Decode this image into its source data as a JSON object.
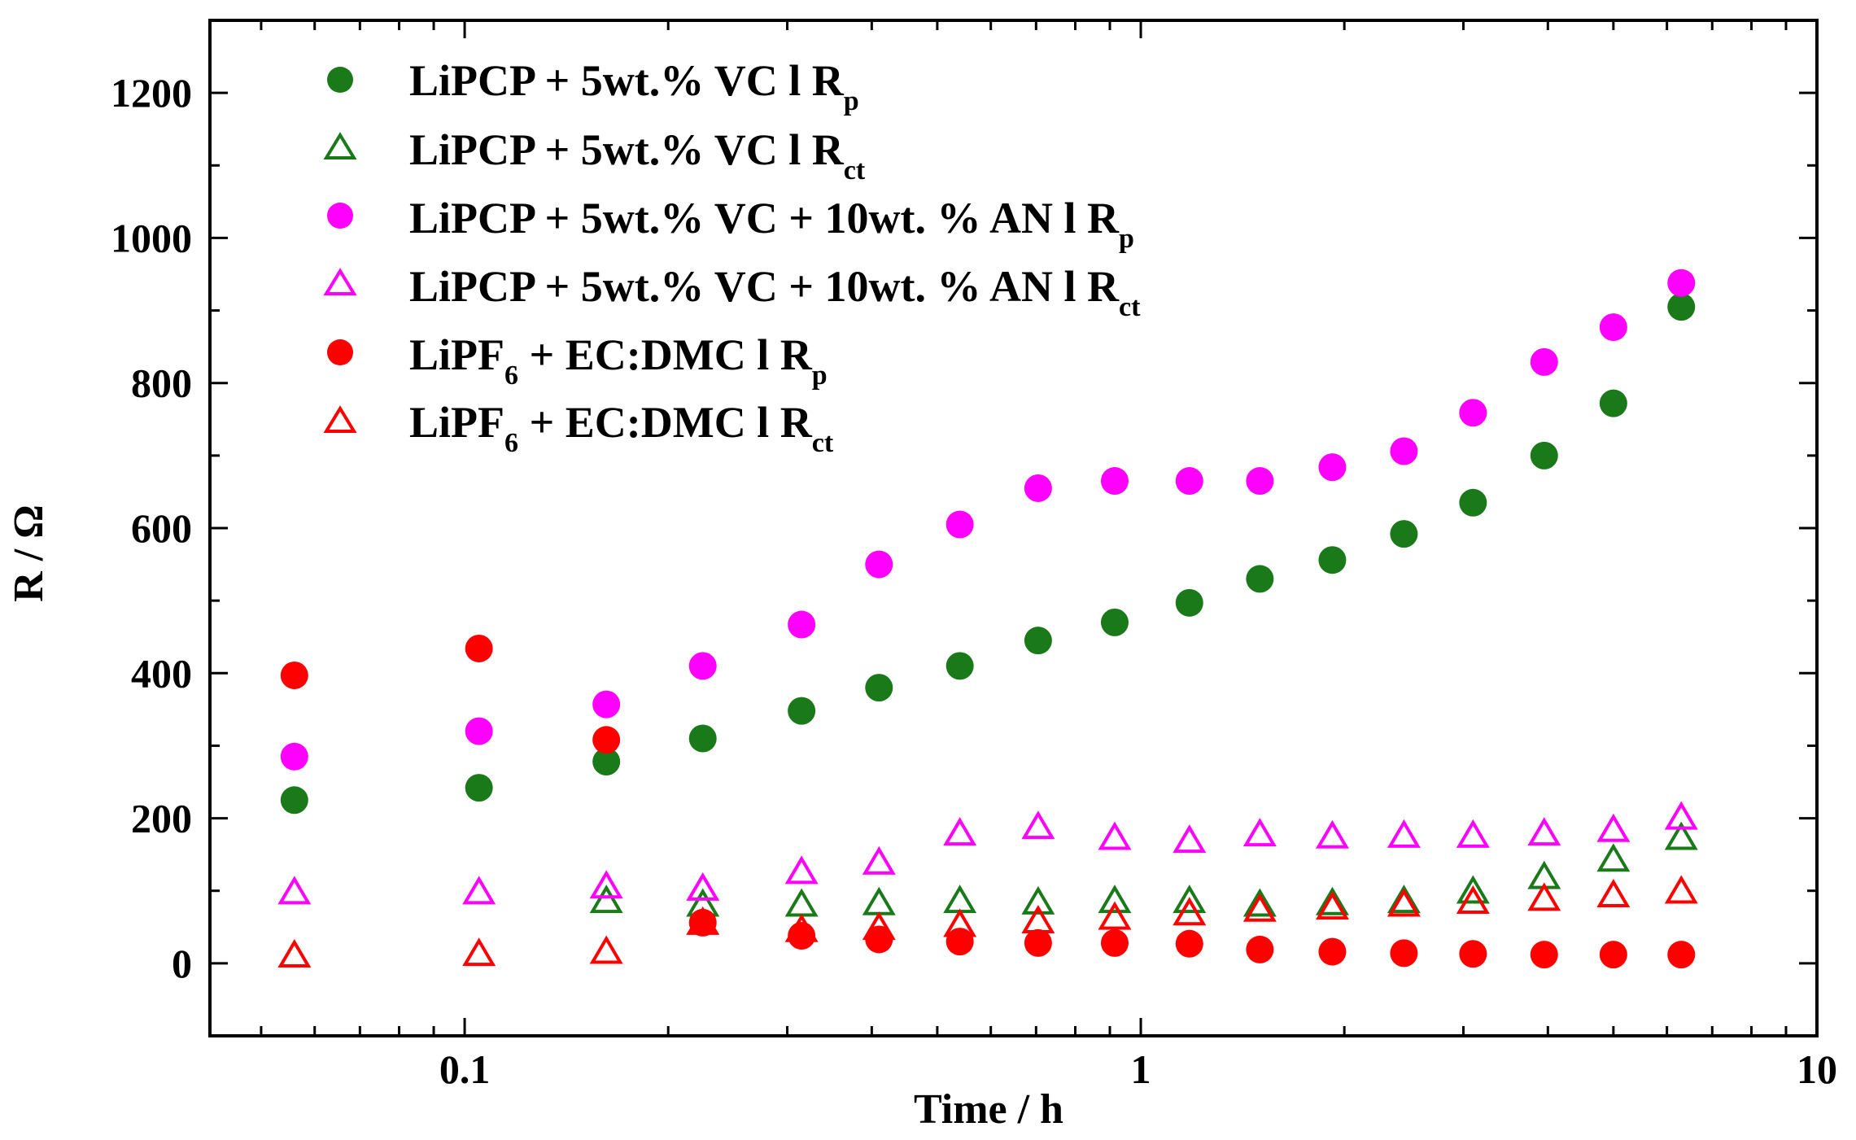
{
  "chart_data": {
    "type": "scatter",
    "title": "",
    "xlabel": "Time / h",
    "ylabel": "R / Ω",
    "xscale": "log",
    "xlim": [
      0.042,
      10
    ],
    "ylim": [
      -100,
      1300
    ],
    "x_ticks": [
      0.1,
      1,
      10
    ],
    "x_tick_labels": [
      "0.1",
      "1",
      "10"
    ],
    "y_ticks": [
      0,
      200,
      400,
      600,
      800,
      1000,
      1200
    ],
    "y_tick_labels": [
      "0",
      "200",
      "400",
      "600",
      "800",
      "1000",
      "1200"
    ],
    "grid": false,
    "legend_position": "top-left",
    "x": [
      0.056,
      0.105,
      0.162,
      0.225,
      0.315,
      0.41,
      0.54,
      0.705,
      0.915,
      1.18,
      1.5,
      1.92,
      2.45,
      3.1,
      3.95,
      5.0,
      6.3
    ],
    "series": [
      {
        "name_main": "LiPCP + 5wt.% VC l R",
        "name_sub": "p",
        "marker": "circle",
        "color": "#1a7a1a",
        "values": [
          225,
          242,
          278,
          310,
          348,
          380,
          410,
          445,
          470,
          497,
          530,
          556,
          592,
          635,
          700,
          772,
          905
        ]
      },
      {
        "name_main": "LiPCP + 5wt.% VC l R",
        "name_sub": "ct",
        "marker": "triangle",
        "color": "#1a7a1a",
        "values": [
          null,
          null,
          85,
          80,
          80,
          82,
          85,
          83,
          85,
          85,
          80,
          82,
          85,
          98,
          118,
          142,
          172
        ]
      },
      {
        "name_main": "LiPCP + 5wt.% VC + 10wt. % AN l R",
        "name_sub": "p",
        "marker": "circle",
        "color": "#ff00ff",
        "values": [
          285,
          320,
          357,
          410,
          467,
          550,
          605,
          655,
          665,
          665,
          665,
          684,
          706,
          759,
          829,
          877,
          938
        ]
      },
      {
        "name_main": "LiPCP + 5wt.% VC + 10wt. % AN l R",
        "name_sub": "ct",
        "marker": "triangle",
        "color": "#ff00ff",
        "values": [
          97,
          97,
          105,
          102,
          125,
          138,
          178,
          187,
          172,
          168,
          177,
          174,
          175,
          175,
          178,
          183,
          200
        ]
      },
      {
        "name_main": "LiPF",
        "name_sub": "6",
        "name_rest": " + EC:DMC l R",
        "name_sub2": "p",
        "marker": "circle",
        "color": "#ff0000",
        "values": [
          397,
          434,
          308,
          56,
          38,
          33,
          30,
          28,
          28,
          27,
          19,
          16,
          14,
          13,
          12,
          12,
          12
        ]
      },
      {
        "name_main": "LiPF",
        "name_sub": "6",
        "name_rest": " + EC:DMC l R",
        "name_sub2": "ct",
        "marker": "triangle",
        "color": "#ff0000",
        "values": [
          10,
          12,
          15,
          55,
          45,
          48,
          52,
          57,
          62,
          68,
          73,
          76,
          80,
          84,
          88,
          93,
          98
        ]
      }
    ]
  }
}
